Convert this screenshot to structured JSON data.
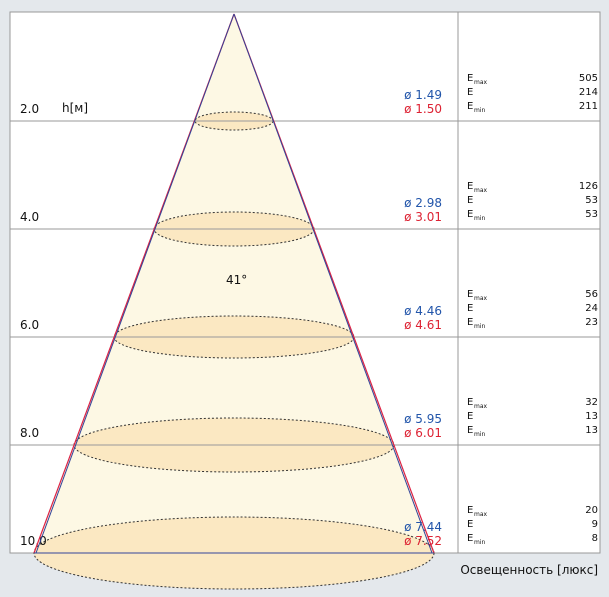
{
  "angle": "41°",
  "height_label": "h[м]",
  "footer": "Освещенность [люкс]",
  "e_label": "E",
  "sub_max": "max",
  "sub_min": "min",
  "rows": [
    {
      "h": "2.0",
      "d1": "ø 1.49",
      "d2": "ø 1.50",
      "emax": "505",
      "e": "214",
      "emin": "211"
    },
    {
      "h": "4.0",
      "d1": "ø 2.98",
      "d2": "ø 3.01",
      "emax": "126",
      "e": "53",
      "emin": "53"
    },
    {
      "h": "6.0",
      "d1": "ø 4.46",
      "d2": "ø 4.61",
      "emax": "56",
      "e": "24",
      "emin": "23"
    },
    {
      "h": "8.0",
      "d1": "ø 5.95",
      "d2": "ø 6.01",
      "emax": "32",
      "e": "13",
      "emin": "13"
    },
    {
      "h": "10.0",
      "d1": "ø 7.44",
      "d2": "ø 7.52",
      "emax": "20",
      "e": "9",
      "emin": "8"
    }
  ]
}
